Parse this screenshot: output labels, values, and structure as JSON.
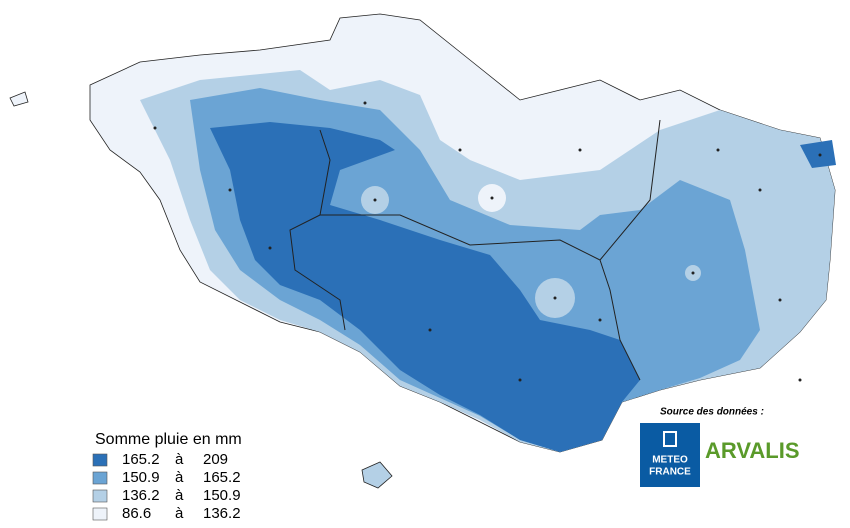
{
  "legend": {
    "title": "Somme pluie en mm",
    "separator": "à",
    "classes": [
      {
        "from": 165.2,
        "to": 209,
        "color": "#2b70b7"
      },
      {
        "from": 150.9,
        "to": 165.2,
        "color": "#6ba4d4"
      },
      {
        "from": 136.2,
        "to": 150.9,
        "color": "#b4d0e6"
      },
      {
        "from": 86.6,
        "to": 136.2,
        "color": "#eef3fa"
      }
    ]
  },
  "source": {
    "label": "Source des données :",
    "logos": {
      "meteo_france": [
        "METEO",
        "FRANCE"
      ],
      "arvalis": "ARVALIS"
    }
  }
}
